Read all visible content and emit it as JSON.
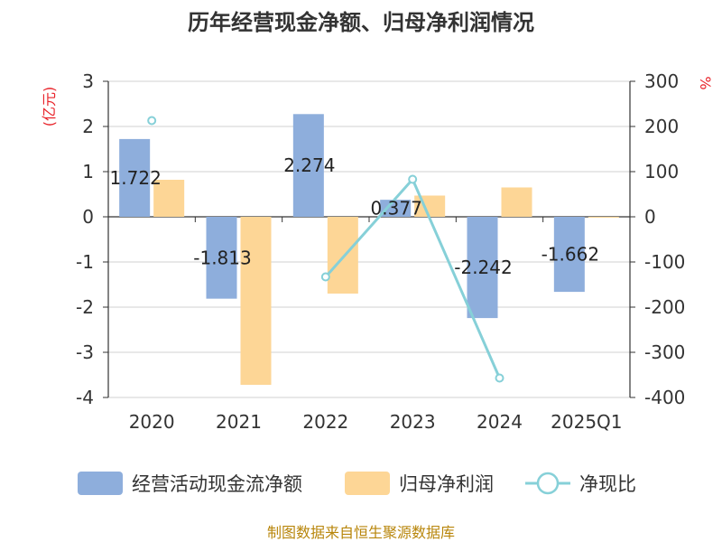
{
  "chart_data": {
    "type": "bar",
    "title": "历年经营现金净额、归母净利润情况",
    "categories": [
      "2020",
      "2021",
      "2022",
      "2023",
      "2024",
      "2025Q1"
    ],
    "left_unit": "(亿元)",
    "right_unit": "%",
    "ylim_left": [
      -4,
      3
    ],
    "ylim_right": [
      -400,
      300
    ],
    "left_ticks": [
      "3",
      "2",
      "1",
      "0",
      "-1",
      "-2",
      "-3",
      "-4"
    ],
    "right_ticks": [
      "300",
      "200",
      "100",
      "0",
      "-100",
      "-200",
      "-300",
      "-400"
    ],
    "grid": true,
    "legend_position": "bottom",
    "series": [
      {
        "name": "经营活动现金流净额",
        "kind": "bar",
        "axis": "left",
        "color": "#8eaedc",
        "values": [
          1.722,
          -1.813,
          2.274,
          0.377,
          -2.242,
          -1.662
        ],
        "labels": [
          "1.722",
          "-1.813",
          "2.274",
          "0.377",
          "-2.242",
          "-1.662"
        ]
      },
      {
        "name": "归母净利润",
        "kind": "bar",
        "axis": "left",
        "color": "#fdd696",
        "values": [
          0.82,
          -3.72,
          -1.7,
          0.47,
          0.65,
          -0.02
        ]
      },
      {
        "name": "净现比",
        "kind": "line",
        "axis": "right",
        "color": "#86d0d8",
        "values": [
          213,
          null,
          -133,
          83,
          -357,
          null
        ]
      }
    ]
  },
  "source_text": "制图数据来自恒生聚源数据库"
}
